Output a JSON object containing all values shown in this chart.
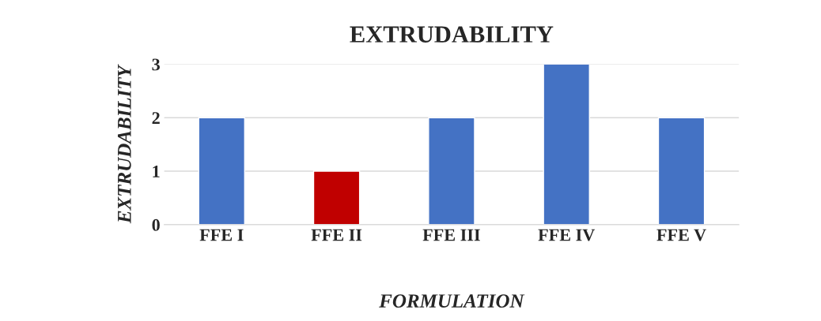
{
  "chart_data": {
    "type": "bar",
    "title": "EXTRUDABILITY",
    "xlabel": "FORMULATION",
    "ylabel": "EXTRUDABILITY",
    "categories": [
      "FFE I",
      "FFE II",
      "FFE III",
      "FFE IV",
      "FFE V"
    ],
    "values": [
      2,
      1,
      2,
      3,
      2
    ],
    "colors": [
      "#4472c4",
      "#c00000",
      "#4472c4",
      "#4472c4",
      "#4472c4"
    ],
    "ylim": [
      0,
      3
    ],
    "yticks": [
      0,
      1,
      2,
      3
    ],
    "grid": "y"
  }
}
